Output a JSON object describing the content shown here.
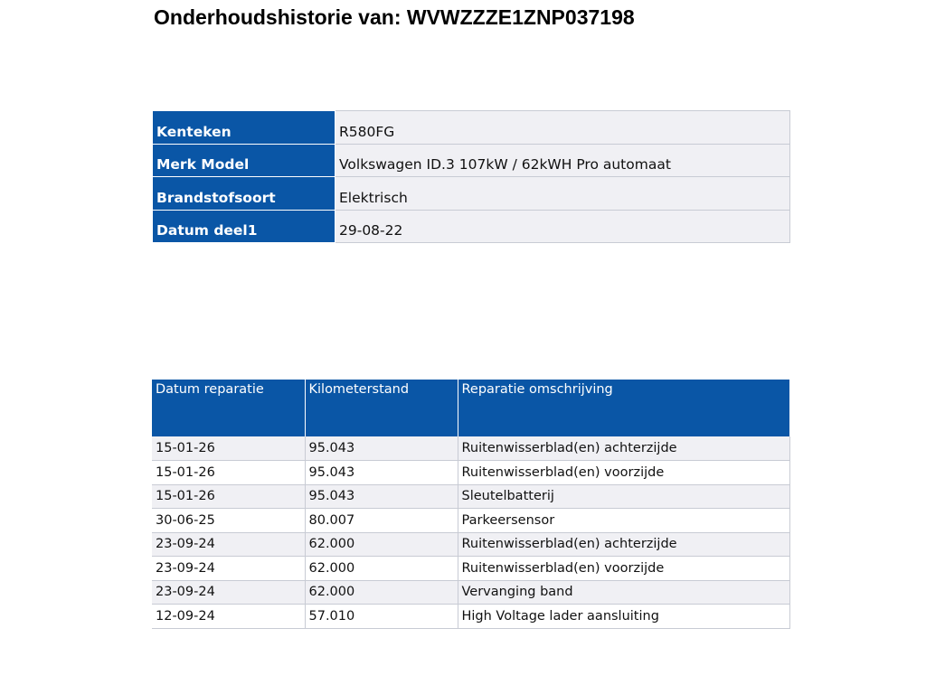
{
  "title": "Onderhoudshistorie van: WVWZZZE1ZNP037198",
  "vehicle": [
    {
      "label": "Kenteken",
      "value": "R580FG"
    },
    {
      "label": "Merk Model",
      "value": "Volkswagen ID.3 107kW / 62kWH Pro automaat"
    },
    {
      "label": "Brandstofsoort",
      "value": "Elektrisch"
    },
    {
      "label": "Datum deel1",
      "value": "29-08-22"
    }
  ],
  "repairs": {
    "headers": [
      "Datum reparatie",
      "Kilometerstand",
      "Reparatie omschrijving"
    ],
    "rows": [
      [
        "15-01-26",
        "95.043",
        "Ruitenwisserblad(en) achterzijde"
      ],
      [
        "15-01-26",
        "95.043",
        "Ruitenwisserblad(en) voorzijde"
      ],
      [
        "15-01-26",
        "95.043",
        "Sleutelbatterij"
      ],
      [
        "30-06-25",
        "80.007",
        "Parkeersensor"
      ],
      [
        "23-09-24",
        "62.000",
        "Ruitenwisserblad(en) achterzijde"
      ],
      [
        "23-09-24",
        "62.000",
        "Ruitenwisserblad(en) voorzijde"
      ],
      [
        "23-09-24",
        "62.000",
        "Vervanging band"
      ],
      [
        "12-09-24",
        "57.010",
        "High Voltage lader aansluiting"
      ]
    ]
  },
  "colors": {
    "header_blue": "#0a56a6",
    "row_alt": "#f0f0f4"
  }
}
